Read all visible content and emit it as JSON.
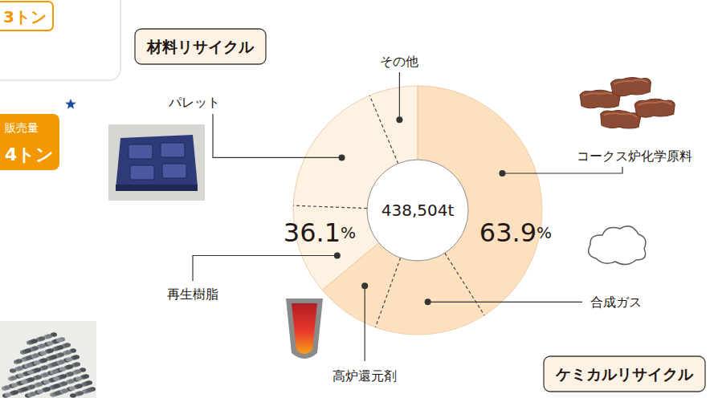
{
  "chart_data": {
    "type": "donut",
    "center_label": {
      "value": 438504,
      "label": "438,504t"
    },
    "data_labels": true,
    "series": [
      {
        "name": "ケミカルリサイクル",
        "value": 63.9,
        "value_label": "63.9%",
        "color": "#fde0bd",
        "categories": [
          "コークス炉化学原料",
          "合成ガス",
          "高炉還元剤"
        ],
        "values": [
          41.0,
          14.5,
          8.4
        ]
      },
      {
        "name": "材料リサイクル",
        "value": 36.1,
        "value_label": "36.1%",
        "color": "#fef2e3",
        "categories": [
          "再生樹脂",
          "パレット",
          "その他"
        ],
        "values": [
          11.7,
          18.1,
          6.3
        ]
      }
    ],
    "fragments": [
      "3トン",
      "販売量",
      "4トン"
    ]
  }
}
